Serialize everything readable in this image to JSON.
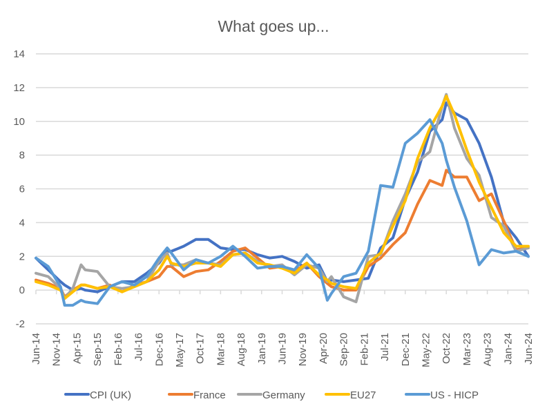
{
  "chart_data": {
    "type": "line",
    "title": "What goes up...",
    "xlabel": "",
    "ylabel": "",
    "ylim": [
      -2,
      14
    ],
    "yticks": [
      -2,
      0,
      2,
      4,
      6,
      8,
      10,
      12,
      14
    ],
    "grid": true,
    "legend_position": "bottom",
    "x_tick_labels": [
      "Jun-14",
      "Nov-14",
      "Apr-15",
      "Sep-15",
      "Feb-16",
      "Jul-16",
      "Dec-16",
      "May-17",
      "Oct-17",
      "Mar-18",
      "Aug-18",
      "Jan-19",
      "Jun-19",
      "Nov-19",
      "Apr-20",
      "Sep-20",
      "Feb-21",
      "Jul-21",
      "Dec-21",
      "May-22",
      "Oct-22",
      "Mar-23",
      "Aug-23",
      "Jan-24",
      "Jun-24"
    ],
    "x_unit": "months since Jun-14",
    "x": [
      0,
      3,
      6,
      7,
      9,
      11,
      12,
      15,
      18,
      21,
      24,
      27,
      30,
      32,
      33,
      36,
      39,
      42,
      45,
      48,
      51,
      54,
      57,
      60,
      63,
      66,
      69,
      71,
      72,
      75,
      78,
      81,
      84,
      87,
      90,
      93,
      96,
      99,
      100,
      102,
      105,
      108,
      111,
      114,
      117,
      120
    ],
    "series": [
      {
        "name": "CPI (UK)",
        "color": "#4472C4",
        "values": [
          1.9,
          1.2,
          0.5,
          0.3,
          0.0,
          0.1,
          0.0,
          -0.1,
          0.2,
          0.5,
          0.5,
          1.0,
          1.6,
          2.3,
          2.3,
          2.6,
          3.0,
          3.0,
          2.5,
          2.4,
          2.4,
          2.1,
          1.9,
          2.0,
          1.7,
          1.3,
          1.5,
          0.5,
          0.6,
          0.5,
          0.6,
          0.7,
          2.5,
          3.1,
          5.4,
          7.0,
          9.4,
          10.1,
          11.1,
          10.5,
          10.1,
          8.7,
          6.7,
          4.0,
          3.1,
          2.0
        ]
      },
      {
        "name": "France",
        "color": "#ED7D31",
        "values": [
          0.6,
          0.4,
          0.1,
          -0.4,
          0.0,
          0.3,
          0.3,
          0.1,
          0.3,
          -0.1,
          0.3,
          0.5,
          0.8,
          1.4,
          1.4,
          0.8,
          1.1,
          1.2,
          1.7,
          2.3,
          2.5,
          1.9,
          1.3,
          1.4,
          1.1,
          1.6,
          0.8,
          0.4,
          0.2,
          0.0,
          0.0,
          1.4,
          1.9,
          2.7,
          3.4,
          5.1,
          6.5,
          6.2,
          7.1,
          6.7,
          6.7,
          5.3,
          5.7,
          4.1,
          2.4,
          2.5
        ]
      },
      {
        "name": "Germany",
        "color": "#A5A5A5",
        "values": [
          1.0,
          0.8,
          0.1,
          -0.5,
          0.1,
          1.5,
          1.2,
          1.1,
          0.2,
          0.1,
          0.2,
          0.5,
          1.7,
          2.2,
          1.5,
          1.5,
          1.8,
          1.6,
          1.5,
          2.1,
          2.2,
          1.7,
          1.4,
          1.5,
          0.9,
          1.5,
          1.3,
          0.5,
          0.8,
          -0.4,
          -0.7,
          2.0,
          2.1,
          4.1,
          5.7,
          7.6,
          8.2,
          10.9,
          11.6,
          9.6,
          7.8,
          6.8,
          4.3,
          3.8,
          2.3,
          2.5
        ]
      },
      {
        "name": "EU27",
        "color": "#FFC000",
        "values": [
          0.5,
          0.3,
          0.0,
          -0.5,
          -0.1,
          0.3,
          0.3,
          0.1,
          0.2,
          -0.1,
          0.2,
          0.5,
          1.2,
          2.0,
          1.6,
          1.4,
          1.6,
          1.6,
          1.4,
          2.1,
          2.2,
          1.6,
          1.5,
          1.3,
          1.0,
          1.6,
          0.9,
          0.6,
          0.4,
          0.2,
          0.1,
          1.6,
          2.2,
          3.8,
          5.3,
          7.8,
          9.6,
          10.9,
          11.5,
          10.4,
          8.3,
          6.4,
          4.9,
          3.4,
          2.6,
          2.6
        ]
      },
      {
        "name": "US - HICP",
        "color": "#5B9BD5",
        "values": [
          1.9,
          1.4,
          0.2,
          -0.9,
          -0.9,
          -0.6,
          -0.7,
          -0.8,
          0.2,
          0.5,
          0.3,
          0.8,
          1.9,
          2.5,
          2.2,
          1.2,
          1.8,
          1.6,
          2.0,
          2.6,
          2.0,
          1.3,
          1.4,
          1.4,
          1.2,
          2.1,
          1.3,
          -0.6,
          -0.2,
          0.8,
          1.0,
          2.3,
          6.2,
          6.1,
          8.7,
          9.3,
          10.1,
          8.7,
          7.7,
          6.1,
          4.1,
          1.5,
          2.4,
          2.2,
          2.3,
          2.0
        ]
      }
    ]
  }
}
